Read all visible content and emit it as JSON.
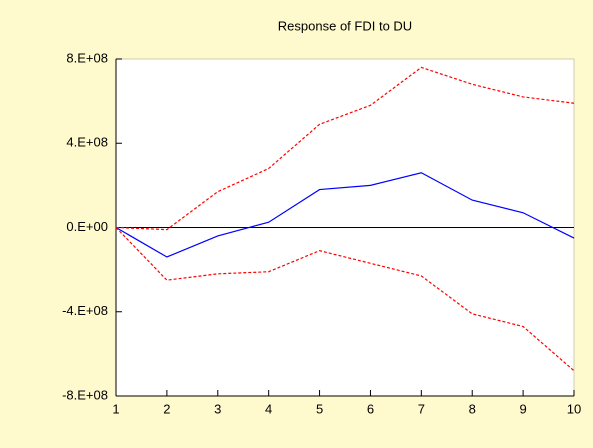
{
  "chart_data": {
    "type": "line",
    "title": "Response of FDI to DU",
    "x": [
      1,
      2,
      3,
      4,
      5,
      6,
      7,
      8,
      9,
      10
    ],
    "series": [
      {
        "color": "#0000ff",
        "dash": false,
        "values": [
          0,
          -140000000,
          -40000000,
          25000000,
          180000000,
          200000000,
          260000000,
          130000000,
          70000000,
          -50000000
        ]
      },
      {
        "color": "#ff0000",
        "dash": true,
        "values": [
          0,
          -10000000,
          170000000,
          280000000,
          490000000,
          580000000,
          760000000,
          680000000,
          620000000,
          590000000
        ]
      },
      {
        "color": "#ff0000",
        "dash": true,
        "values": [
          0,
          -250000000,
          -220000000,
          -210000000,
          -110000000,
          -170000000,
          -230000000,
          -410000000,
          -470000000,
          -680000000
        ]
      }
    ],
    "xlim": [
      1,
      10
    ],
    "xticks": [
      1,
      2,
      3,
      4,
      5,
      6,
      7,
      8,
      9,
      10
    ],
    "ylim": [
      -800000000,
      800000000
    ],
    "yticks": [
      {
        "value": 800000000,
        "label": "8.E+08"
      },
      {
        "value": 400000000,
        "label": "4.E+08"
      },
      {
        "value": 0,
        "label": "0.E+00"
      },
      {
        "value": -400000000,
        "label": "-4.E+08"
      },
      {
        "value": -800000000,
        "label": "-8.E+08"
      }
    ]
  }
}
